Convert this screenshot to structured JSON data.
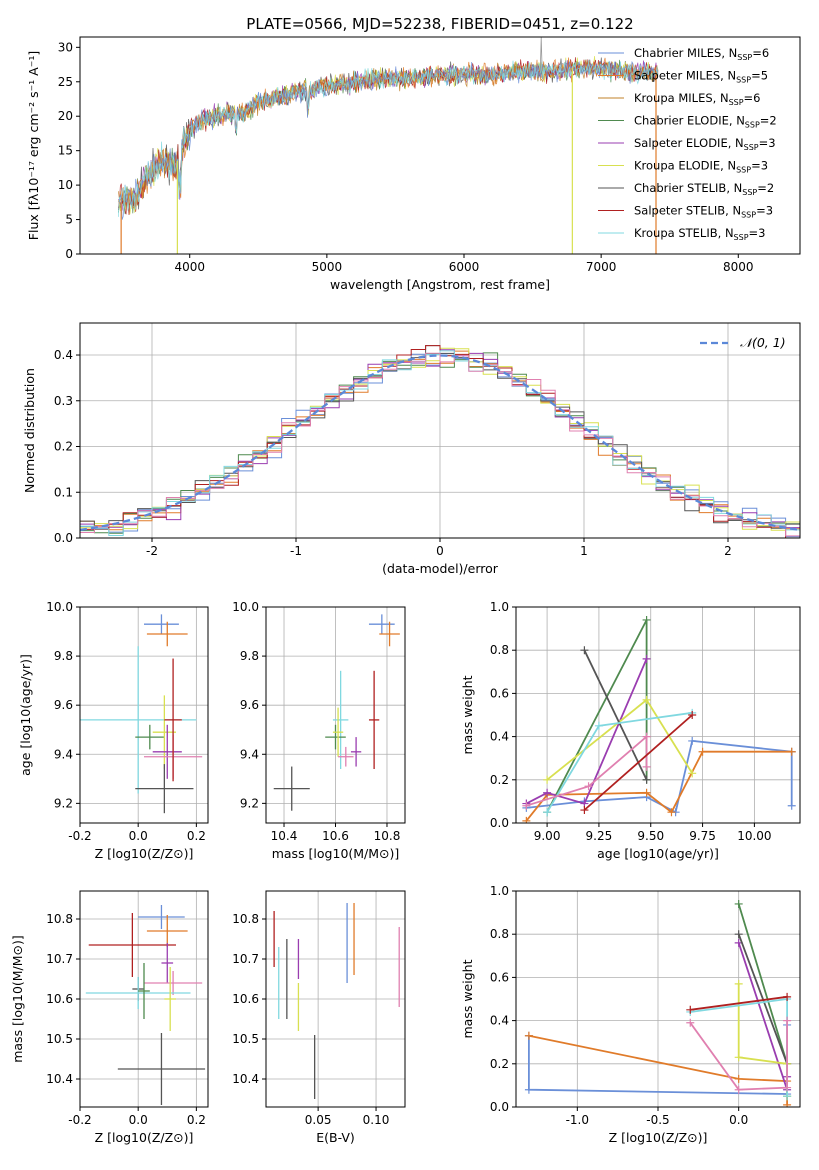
{
  "colors": [
    "#6a8fd8",
    "#e07b2a",
    "#c0802a",
    "#4f8a4f",
    "#9a3db0",
    "#d8e050",
    "#555555",
    "#b02020",
    "#80d8e0",
    "#e080b0"
  ],
  "chart_data": [
    {
      "id": "spectrum",
      "type": "line",
      "title": "PLATE=0566, MJD=52238, FIBERID=0451, z=0.122",
      "xlabel": "wavelength [Angstrom, rest frame]",
      "ylabel": "Flux [fλ10⁻¹⁷ erg cm⁻² s⁻¹ A⁻¹]",
      "xlim": [
        3200,
        8450
      ],
      "ylim": [
        0,
        31.5
      ],
      "xticks": [
        4000,
        5000,
        6000,
        7000,
        8000
      ],
      "yticks": [
        0,
        5,
        10,
        15,
        20,
        25,
        30
      ],
      "legend_placement": "top-right",
      "legend": [
        "Chabrier MILES, N_SSP=6",
        "Salpeter MILES, N_SSP=5",
        "Kroupa MILES, N_SSP=6",
        "Chabrier ELODIE, N_SSP=2",
        "Salpeter ELODIE, N_SSP=3",
        "Kroupa ELODIE, N_SSP=3",
        "Chabrier STELIB, N_SSP=2",
        "Salpeter STELIB, N_SSP=3",
        "Kroupa STELIB, N_SSP=3"
      ],
      "envelope_x": [
        3500,
        3600,
        3700,
        3800,
        3900,
        4000,
        4100,
        4200,
        4300,
        4400,
        4500,
        4600,
        4700,
        4800,
        4900,
        5000,
        5200,
        5400,
        5600,
        5800,
        6000,
        6200,
        6400,
        6600,
        6800,
        7000,
        7200,
        7400
      ],
      "envelope_y": [
        7.5,
        8.0,
        11.5,
        13.5,
        13.0,
        18.0,
        19.5,
        20.0,
        20.5,
        20.5,
        22.0,
        22.5,
        23.0,
        23.5,
        24.0,
        24.5,
        25.0,
        25.5,
        25.5,
        26.0,
        26.0,
        26.0,
        26.5,
        26.5,
        27.0,
        27.0,
        26.5,
        26.5
      ]
    },
    {
      "id": "residuals",
      "type": "histogram",
      "xlabel": "(data-model)/error",
      "ylabel": "Normed distribution",
      "xlim": [
        -2.5,
        2.5
      ],
      "ylim": [
        0,
        0.47
      ],
      "xticks": [
        -2,
        -1,
        0,
        1,
        2
      ],
      "yticks": [
        0.0,
        0.1,
        0.2,
        0.3,
        0.4
      ],
      "legend": "𝒩(0, 1)",
      "legend_placement": "top-right",
      "grid": true
    },
    {
      "id": "age-vs-Z",
      "type": "errorbar",
      "xlabel": "Z [log10(Z/Z⊙)]",
      "ylabel": "age  [log10(age/yr)]",
      "xlim": [
        -0.2,
        0.24
      ],
      "ylim": [
        9.12,
        10.0
      ],
      "xticks": [
        -0.2,
        0.0,
        0.2
      ],
      "yticks": [
        9.2,
        9.4,
        9.6,
        9.8,
        10.0
      ],
      "points": [
        {
          "c": 0,
          "x": 0.08,
          "y": 9.93,
          "xe": 0.06,
          "ye": 0.04
        },
        {
          "c": 1,
          "x": 0.1,
          "y": 9.89,
          "xe": 0.07,
          "ye": 0.05
        },
        {
          "c": 8,
          "x": 0.0,
          "y": 9.54,
          "xe": 0.2,
          "ye": 0.3
        },
        {
          "c": 3,
          "x": 0.04,
          "y": 9.47,
          "xe": 0.05,
          "ye": 0.05
        },
        {
          "c": 5,
          "x": 0.09,
          "y": 9.49,
          "xe": 0.04,
          "ye": 0.15
        },
        {
          "c": 4,
          "x": 0.1,
          "y": 9.41,
          "xe": 0.05,
          "ye": 0.11
        },
        {
          "c": 9,
          "x": 0.12,
          "y": 9.39,
          "xe": 0.1,
          "ye": 0.09
        },
        {
          "c": 6,
          "x": 0.09,
          "y": 9.26,
          "xe": 0.1,
          "ye": 0.1
        },
        {
          "c": 7,
          "x": 0.12,
          "y": 9.54,
          "xe": 0.03,
          "ye": 0.25
        }
      ]
    },
    {
      "id": "age-vs-mass",
      "type": "errorbar",
      "xlabel": "mass [log10(M/M⊙)]",
      "ylabel": "",
      "xlim": [
        10.33,
        10.87
      ],
      "ylim": [
        9.12,
        10.0
      ],
      "xticks": [
        10.4,
        10.6,
        10.8
      ],
      "yticks": [
        9.2,
        9.4,
        9.6,
        9.8,
        10.0
      ],
      "points": [
        {
          "c": 0,
          "x": 10.78,
          "y": 9.93,
          "xe": 0.05,
          "ye": 0.04
        },
        {
          "c": 1,
          "x": 10.81,
          "y": 9.89,
          "xe": 0.04,
          "ye": 0.05
        },
        {
          "c": 8,
          "x": 10.62,
          "y": 9.54,
          "xe": 0.03,
          "ye": 0.2
        },
        {
          "c": 3,
          "x": 10.6,
          "y": 9.47,
          "xe": 0.04,
          "ye": 0.05
        },
        {
          "c": 5,
          "x": 10.61,
          "y": 9.49,
          "xe": 0.02,
          "ye": 0.1
        },
        {
          "c": 4,
          "x": 10.68,
          "y": 9.41,
          "xe": 0.02,
          "ye": 0.06
        },
        {
          "c": 9,
          "x": 10.64,
          "y": 9.39,
          "xe": 0.03,
          "ye": 0.04
        },
        {
          "c": 6,
          "x": 10.43,
          "y": 9.26,
          "xe": 0.07,
          "ye": 0.09
        },
        {
          "c": 7,
          "x": 10.75,
          "y": 9.54,
          "xe": 0.02,
          "ye": 0.2
        }
      ]
    },
    {
      "id": "weight-vs-age",
      "type": "line",
      "xlabel": "age  [log10(age/yr)]",
      "ylabel": "mass weight",
      "xlim": [
        8.85,
        10.22
      ],
      "ylim": [
        0.0,
        1.0
      ],
      "xticks": [
        9.0,
        9.25,
        9.5,
        9.75,
        10.0
      ],
      "yticks": [
        0.0,
        0.2,
        0.4,
        0.6,
        0.8,
        1.0
      ],
      "series": [
        {
          "c": 0,
          "x": [
            8.9,
            9.18,
            9.48,
            9.62,
            9.7,
            10.18,
            10.18
          ],
          "y": [
            0.07,
            0.1,
            0.12,
            0.05,
            0.38,
            0.33,
            0.08
          ]
        },
        {
          "c": 1,
          "x": [
            8.9,
            9.0,
            9.48,
            9.6,
            9.75,
            10.18
          ],
          "y": [
            0.01,
            0.13,
            0.14,
            0.05,
            0.33,
            0.33
          ]
        },
        {
          "c": 3,
          "x": [
            9.0,
            9.48,
            9.48
          ],
          "y": [
            0.05,
            0.94,
            0.2
          ]
        },
        {
          "c": 4,
          "x": [
            8.9,
            9.0,
            9.18,
            9.48
          ],
          "y": [
            0.09,
            0.14,
            0.09,
            0.76
          ]
        },
        {
          "c": 5,
          "x": [
            9.0,
            9.48,
            9.7
          ],
          "y": [
            0.2,
            0.57,
            0.23
          ]
        },
        {
          "c": 6,
          "x": [
            9.18,
            9.48
          ],
          "y": [
            0.8,
            0.2
          ]
        },
        {
          "c": 8,
          "x": [
            9.0,
            9.25,
            9.7
          ],
          "y": [
            0.05,
            0.45,
            0.51
          ]
        },
        {
          "c": 9,
          "x": [
            8.9,
            9.2,
            9.48,
            9.48
          ],
          "y": [
            0.08,
            0.17,
            0.4,
            0.26
          ]
        },
        {
          "c": 7,
          "x": [
            9.18,
            9.7
          ],
          "y": [
            0.06,
            0.5
          ]
        }
      ]
    },
    {
      "id": "mass-vs-Z",
      "type": "errorbar",
      "xlabel": "Z [log10(Z/Z⊙)]",
      "ylabel": "mass [log10(M/M⊙)]",
      "xlim": [
        -0.2,
        0.24
      ],
      "ylim": [
        10.33,
        10.87
      ],
      "xticks": [
        -0.2,
        0.0,
        0.2
      ],
      "yticks": [
        10.4,
        10.5,
        10.6,
        10.7,
        10.8
      ],
      "points": [
        {
          "c": 0,
          "x": 0.08,
          "y": 10.805,
          "xe": 0.08,
          "ye": 0.03
        },
        {
          "c": 1,
          "x": 0.1,
          "y": 10.77,
          "xe": 0.07,
          "ye": 0.04
        },
        {
          "c": 7,
          "x": -0.02,
          "y": 10.735,
          "xe": 0.15,
          "ye": 0.08
        },
        {
          "c": 4,
          "x": 0.1,
          "y": 10.69,
          "xe": 0.02,
          "ye": 0.05
        },
        {
          "c": 6,
          "x": 0.0,
          "y": 10.625,
          "xe": 0.02,
          "ye": 0.03
        },
        {
          "c": 9,
          "x": 0.12,
          "y": 10.64,
          "xe": 0.1,
          "ye": 0.03
        },
        {
          "c": 8,
          "x": 0.0,
          "y": 10.615,
          "xe": 0.18,
          "ye": 0.04
        },
        {
          "c": 3,
          "x": 0.02,
          "y": 10.62,
          "xe": 0.02,
          "ye": 0.07
        },
        {
          "c": 5,
          "x": 0.11,
          "y": 10.6,
          "xe": 0.02,
          "ye": 0.08
        },
        {
          "c": 6,
          "x": 0.08,
          "y": 10.425,
          "xe": 0.15,
          "ye": 0.09
        }
      ]
    },
    {
      "id": "mass-vs-ebv",
      "type": "errorbar",
      "xlabel": "E(B-V)",
      "ylabel": "",
      "xlim": [
        0.005,
        0.125
      ],
      "ylim": [
        10.33,
        10.87
      ],
      "xticks": [
        0.05,
        0.1
      ],
      "xticklabels": [
        "0.05",
        "0.10"
      ],
      "yticks": [
        10.4,
        10.5,
        10.6,
        10.7,
        10.8
      ],
      "points": [
        {
          "c": 7,
          "x": 0.012,
          "y": 10.75,
          "xe": 0,
          "ye": 0.07
        },
        {
          "c": 8,
          "x": 0.016,
          "y": 10.64,
          "xe": 0,
          "ye": 0.09
        },
        {
          "c": 6,
          "x": 0.023,
          "y": 10.65,
          "xe": 0,
          "ye": 0.1
        },
        {
          "c": 4,
          "x": 0.033,
          "y": 10.7,
          "xe": 0,
          "ye": 0.05
        },
        {
          "c": 5,
          "x": 0.033,
          "y": 10.58,
          "xe": 0,
          "ye": 0.06
        },
        {
          "c": 6,
          "x": 0.047,
          "y": 10.43,
          "xe": 0,
          "ye": 0.08
        },
        {
          "c": 0,
          "x": 0.075,
          "y": 10.74,
          "xe": 0,
          "ye": 0.1
        },
        {
          "c": 1,
          "x": 0.081,
          "y": 10.75,
          "xe": 0,
          "ye": 0.09
        },
        {
          "c": 9,
          "x": 0.12,
          "y": 10.68,
          "xe": 0,
          "ye": 0.1
        }
      ]
    },
    {
      "id": "weight-vs-Z",
      "type": "line",
      "xlabel": "Z [log10(Z/Z⊙)]",
      "ylabel": "mass weight",
      "xlim": [
        -1.38,
        0.38
      ],
      "ylim": [
        0.0,
        1.0
      ],
      "xticks": [
        -1.0,
        -0.5,
        0.0
      ],
      "yticks": [
        0.0,
        0.2,
        0.4,
        0.6,
        0.8,
        1.0
      ],
      "series": [
        {
          "c": 0,
          "x": [
            -1.3,
            -1.3,
            0.3,
            0.3
          ],
          "y": [
            0.33,
            0.08,
            0.06,
            0.38
          ]
        },
        {
          "c": 1,
          "x": [
            -1.3,
            0.0,
            0.3,
            0.3
          ],
          "y": [
            0.33,
            0.13,
            0.12,
            0.01
          ]
        },
        {
          "c": 3,
          "x": [
            0.0,
            0.3,
            0.3
          ],
          "y": [
            0.94,
            0.2,
            0.05
          ]
        },
        {
          "c": 4,
          "x": [
            0.0,
            0.3,
            0.3
          ],
          "y": [
            0.76,
            0.08,
            0.14
          ]
        },
        {
          "c": 6,
          "x": [
            0.0,
            0.3
          ],
          "y": [
            0.8,
            0.2
          ]
        },
        {
          "c": 5,
          "x": [
            0.0,
            0.0,
            0.3,
            0.3
          ],
          "y": [
            0.57,
            0.23,
            0.2,
            0.05
          ]
        },
        {
          "c": 8,
          "x": [
            -0.3,
            0.3,
            0.3
          ],
          "y": [
            0.44,
            0.5,
            0.05
          ]
        },
        {
          "c": 7,
          "x": [
            -0.3,
            0.3
          ],
          "y": [
            0.45,
            0.51
          ]
        },
        {
          "c": 9,
          "x": [
            -0.3,
            0.0,
            0.3,
            0.3
          ],
          "y": [
            0.39,
            0.08,
            0.09,
            0.4
          ]
        }
      ]
    }
  ]
}
